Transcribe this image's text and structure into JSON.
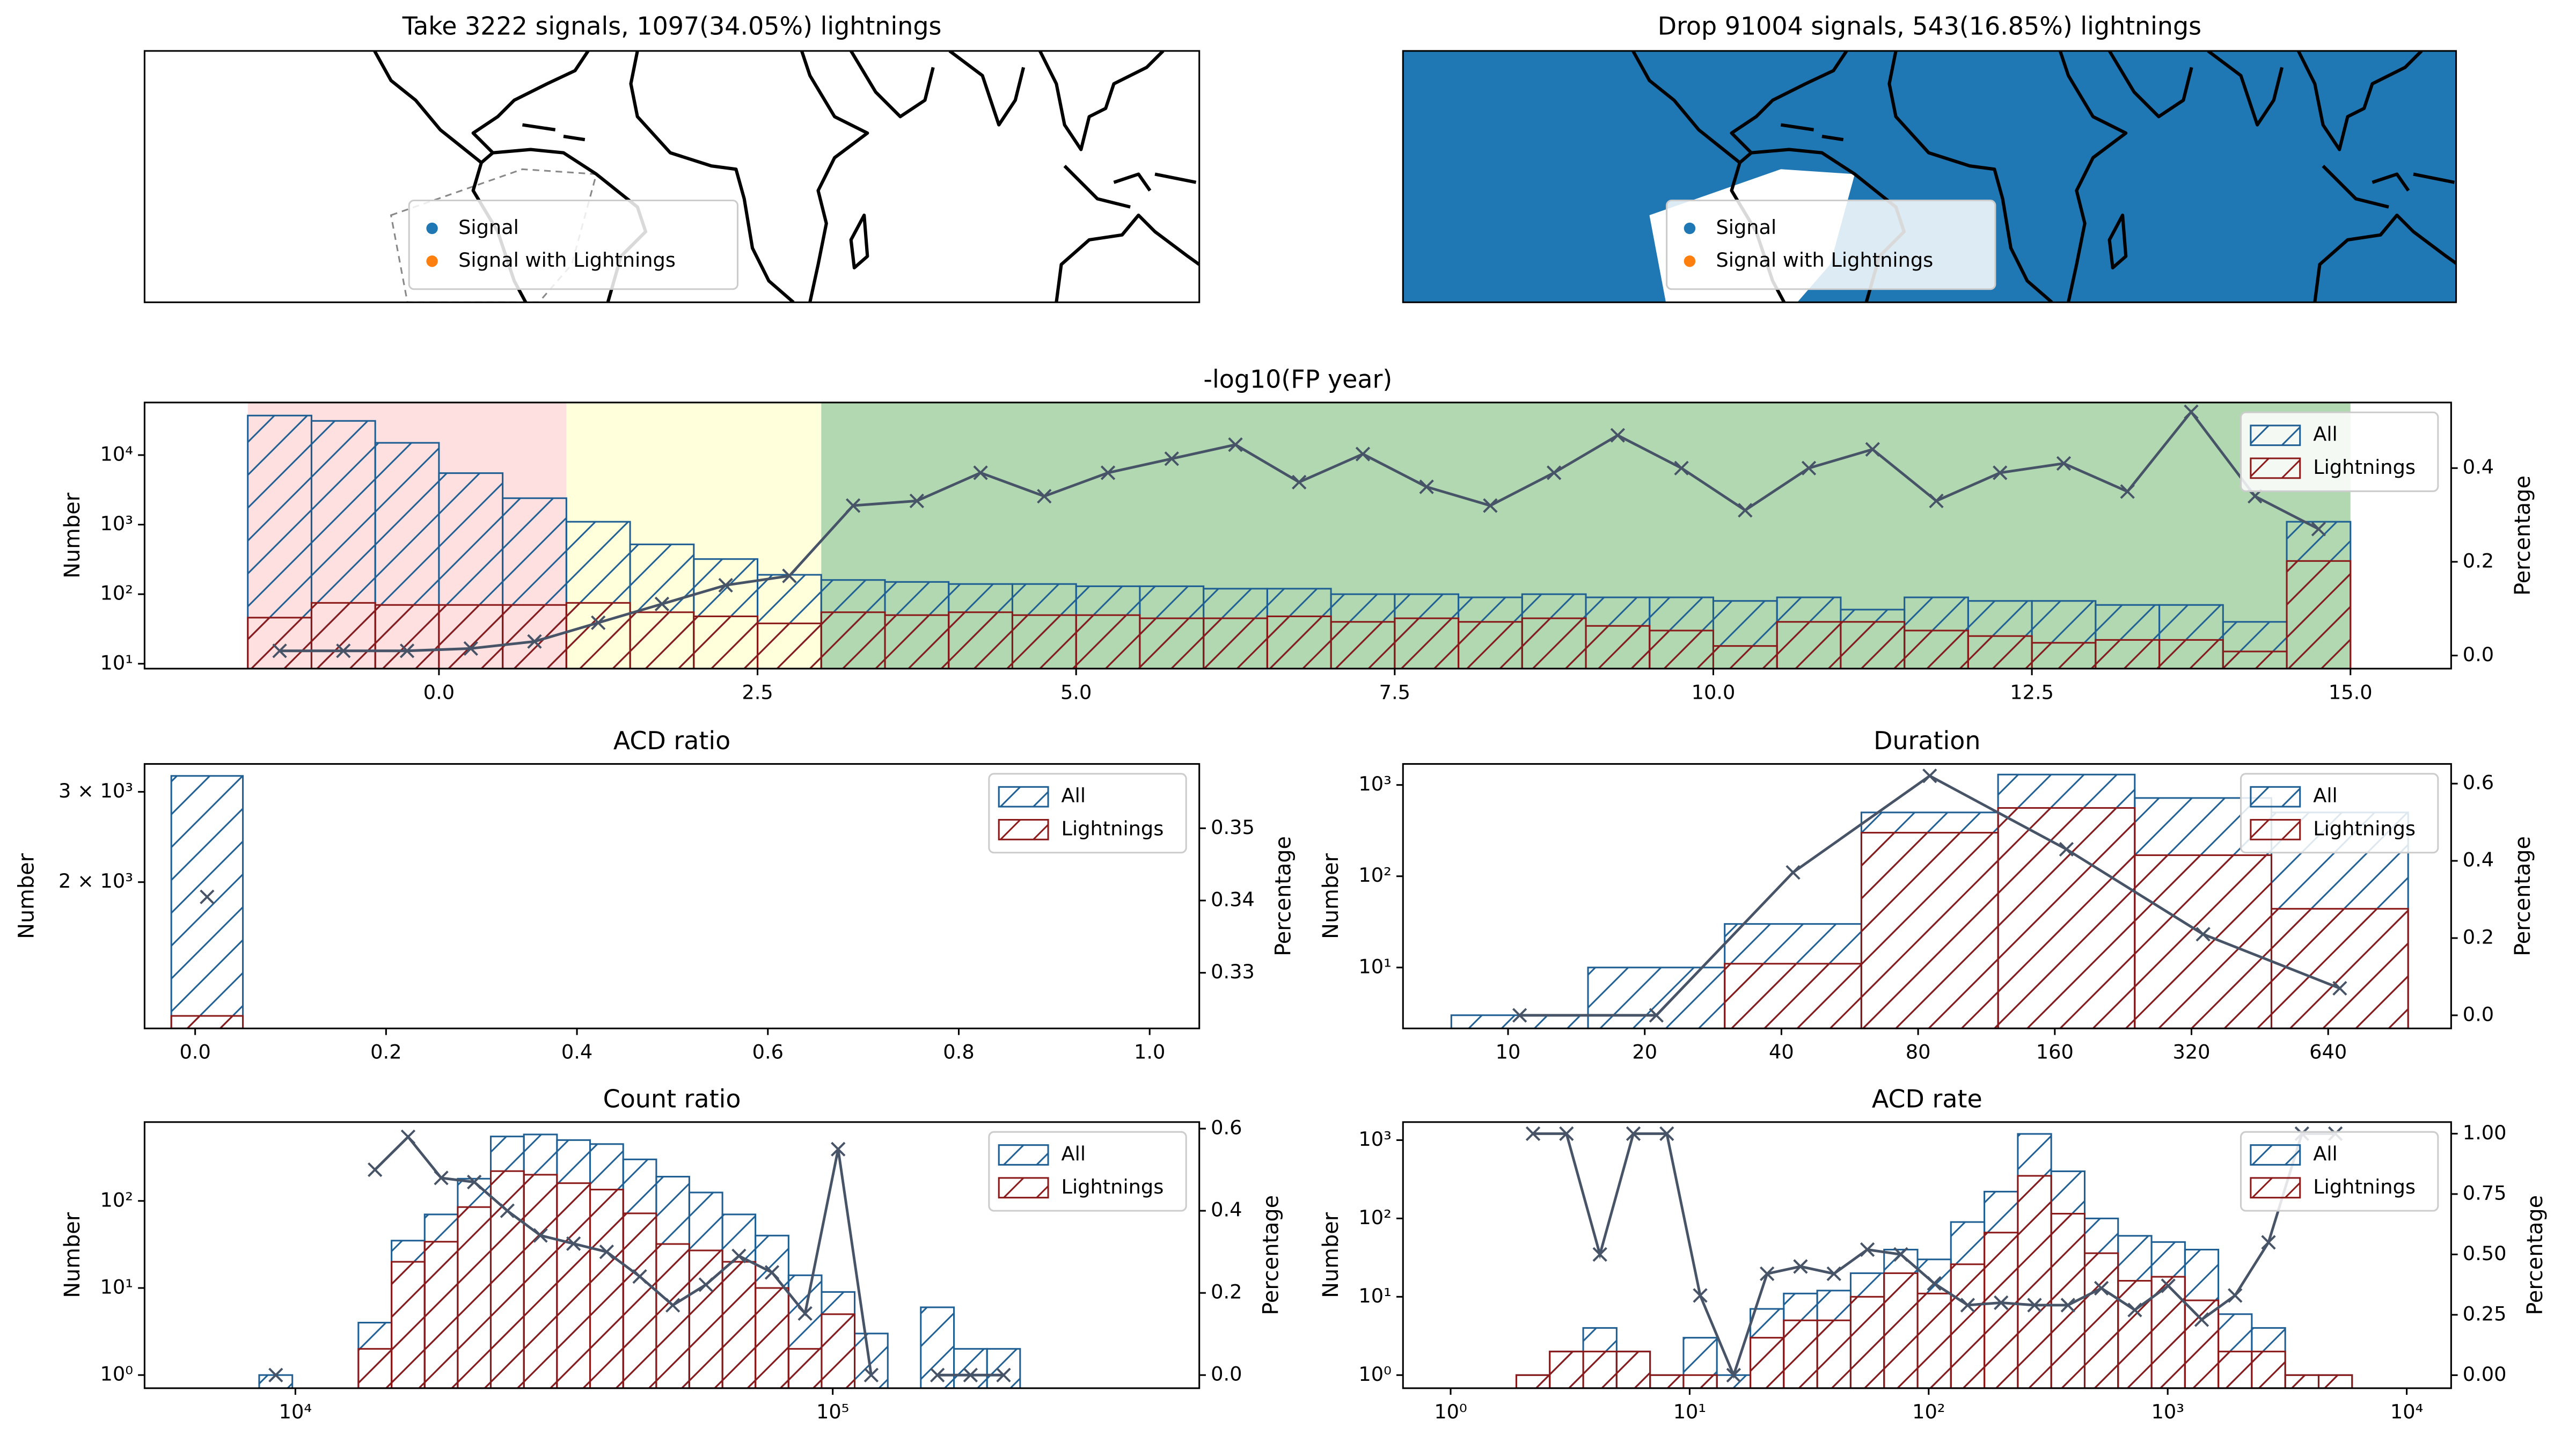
{
  "chart_data": [
    {
      "type": "map",
      "title": "Take 3222 signals, 1097(34.05%) lightnings",
      "background": "#ffffff",
      "legend": "lower center",
      "series": [
        {
          "name": "Signal",
          "color": "#1f77b4"
        },
        {
          "name": "Signal with Lightnings",
          "color": "#ff7f0e"
        }
      ]
    },
    {
      "type": "map",
      "title": "Drop 91004 signals, 543(16.85%) lightnings",
      "background": "#1f77b4",
      "legend": "lower center",
      "series": [
        {
          "name": "Signal",
          "color": "#1f77b4"
        },
        {
          "name": "Signal with Lightnings",
          "color": "#ff7f0e"
        }
      ]
    },
    {
      "type": "histogram",
      "title": "-log10(FP year)",
      "ylabel": "Number",
      "y2label": "Percentage",
      "xscale": "linear",
      "yscale": "log",
      "legend": "upper right",
      "xlim": [
        -2.31,
        15.79
      ],
      "xticks": [
        {
          "value": 0,
          "label": "0.0"
        },
        2.5,
        {
          "value": 5,
          "label": "5.0"
        },
        7.5,
        {
          "value": 10,
          "label": "10.0"
        },
        12.5,
        {
          "value": 15,
          "label": "15.0"
        }
      ],
      "ylim": [
        8.5,
        57000
      ],
      "yticks": [
        {
          "value": 10,
          "label": "10¹"
        },
        {
          "value": 100,
          "label": "10²"
        },
        {
          "value": 1000,
          "label": "10³"
        },
        {
          "value": 10000,
          "label": "10⁴"
        }
      ],
      "y2lim": [
        -0.028,
        0.54
      ],
      "y2ticks": [
        {
          "value": 0,
          "label": "0.0"
        },
        0.2,
        0.4
      ],
      "regions": [
        {
          "range": [
            -1.5,
            1
          ],
          "color": "#ffe0e0"
        },
        {
          "range": [
            1,
            3
          ],
          "color": "#ffffdc"
        },
        {
          "range": [
            3,
            15
          ],
          "color": "#b2d8b2"
        }
      ],
      "bins": [
        -1.5,
        -1,
        -0.5,
        0,
        0.5,
        1,
        1.5,
        2,
        2.5,
        3,
        3.5,
        4,
        4.5,
        5,
        5.5,
        6,
        6.5,
        7,
        7.5,
        8,
        8.5,
        9,
        9.5,
        10,
        10.5,
        11,
        11.5,
        12,
        12.5,
        13,
        13.5,
        14,
        14.5,
        15
      ],
      "series": [
        {
          "name": "All",
          "color": "#1f5f93",
          "values": [
            37000,
            31000,
            15000,
            5500,
            2400,
            1100,
            520,
            320,
            190,
            160,
            150,
            140,
            140,
            130,
            130,
            120,
            120,
            100,
            100,
            90,
            100,
            90,
            90,
            80,
            90,
            60,
            90,
            80,
            80,
            70,
            70,
            40,
            1100
          ]
        },
        {
          "name": "Lightnings",
          "color": "#8b1a1a",
          "values": [
            46,
            75,
            70,
            70,
            70,
            75,
            55,
            48,
            38,
            55,
            50,
            55,
            50,
            50,
            45,
            45,
            48,
            40,
            45,
            40,
            45,
            35,
            30,
            18,
            40,
            40,
            30,
            25,
            20,
            22,
            22,
            15,
            300
          ]
        },
        {
          "color": "#475366",
          "axis": "y2",
          "values": [
            0.01,
            0.01,
            0.01,
            0.015,
            0.03,
            0.07,
            0.11,
            0.15,
            0.17,
            0.32,
            0.33,
            0.39,
            0.34,
            0.39,
            0.42,
            0.45,
            0.37,
            0.43,
            0.36,
            0.32,
            0.39,
            0.47,
            0.4,
            0.31,
            0.4,
            0.44,
            0.33,
            0.39,
            0.41,
            0.35,
            0.52,
            0.34,
            0.27
          ]
        }
      ]
    },
    {
      "type": "histogram",
      "title": "ACD ratio",
      "ylabel": "Number",
      "y2label": "Percentage",
      "xscale": "linear",
      "yscale": "log",
      "legend": "upper right",
      "xlim": [
        -0.053,
        1.052
      ],
      "xticks": [
        {
          "value": 0,
          "label": "0.0"
        },
        0.2,
        0.4,
        0.6,
        0.8,
        {
          "value": 1,
          "label": "1.0"
        }
      ],
      "ylim": [
        1037,
        3400
      ],
      "yticks": [
        {
          "value": 2000,
          "label": "2 × 10³"
        },
        {
          "value": 3000,
          "label": "3 × 10³"
        }
      ],
      "y2lim": [
        0.3223,
        0.3589
      ],
      "y2ticks": [
        0.33,
        0.34,
        0.35
      ],
      "bins": [
        -0.025,
        0.05
      ],
      "series": [
        {
          "name": "All",
          "color": "#1f5f93",
          "values": [
            3222
          ]
        },
        {
          "name": "Lightnings",
          "color": "#8b1a1a",
          "values": [
            1097
          ]
        },
        {
          "color": "#475366",
          "axis": "y2",
          "values": [
            0.3405
          ]
        }
      ]
    },
    {
      "type": "histogram",
      "title": "Duration",
      "ylabel": "Number",
      "y2label": "Percentage",
      "xscale": "log",
      "yscale": "log",
      "legend": "upper right",
      "xlim": [
        5.87,
        1194
      ],
      "xticks": [
        10,
        20,
        40,
        80,
        160,
        320,
        640
      ],
      "ylim": [
        2.15,
        1700
      ],
      "yticks": [
        {
          "value": 10,
          "label": "10¹"
        },
        {
          "value": 100,
          "label": "10²"
        },
        {
          "value": 1000,
          "label": "10³"
        }
      ],
      "y2lim": [
        -0.034,
        0.651
      ],
      "y2ticks": [
        {
          "value": 0,
          "label": "0.0"
        },
        0.2,
        0.4,
        0.6
      ],
      "bins": [
        7.5,
        15,
        30,
        60,
        120,
        240,
        480,
        960
      ],
      "series": [
        {
          "name": "All",
          "color": "#1f5f93",
          "values": [
            3,
            10,
            30,
            500,
            1300,
            720,
            500
          ]
        },
        {
          "name": "Lightnings",
          "color": "#8b1a1a",
          "values": [
            0,
            0,
            11,
            300,
            560,
            170,
            44
          ]
        },
        {
          "color": "#475366",
          "axis": "y2",
          "values": [
            0,
            0,
            0.37,
            0.62,
            0.43,
            0.21,
            0.07
          ]
        }
      ]
    },
    {
      "type": "histogram",
      "title": "Count ratio",
      "ylabel": "Number",
      "y2label": "Percentage",
      "xscale": "log",
      "yscale": "log",
      "legend": "upper right",
      "xlim": [
        5240,
        481000
      ],
      "xticks": [
        {
          "value": 10000,
          "label": "10⁴"
        },
        {
          "value": 100000,
          "label": "10⁵"
        }
      ],
      "ylim": [
        0.706,
        805
      ],
      "yticks": [
        {
          "value": 1,
          "label": "10⁰"
        },
        {
          "value": 10,
          "label": "10¹"
        },
        {
          "value": 100,
          "label": "10²"
        }
      ],
      "y2lim": [
        -0.032,
        0.616
      ],
      "y2ticks": [
        {
          "value": 0,
          "label": "0.0"
        },
        0.2,
        0.4,
        0.6
      ],
      "bins": [
        8563,
        9870,
        11370,
        13100,
        15100,
        17400,
        20050,
        23100,
        26620,
        30680,
        35350,
        40740,
        46950,
        54080,
        62330,
        71800,
        82750,
        95350,
        109850,
        126600,
        145850,
        168100,
        193700,
        223200
      ],
      "series": [
        {
          "name": "All",
          "color": "#1f5f93",
          "values": [
            1,
            0,
            0,
            4,
            35,
            70,
            180,
            550,
            580,
            500,
            450,
            300,
            190,
            125,
            70,
            40,
            14,
            9,
            3,
            0,
            6,
            2,
            2
          ]
        },
        {
          "name": "Lightnings",
          "color": "#8b1a1a",
          "values": [
            0,
            0,
            0,
            2,
            20,
            34,
            85,
            220,
            200,
            160,
            135,
            72,
            32,
            27,
            20,
            10,
            2,
            5,
            0,
            0,
            0,
            0,
            0
          ]
        },
        {
          "color": "#475366",
          "axis": "y2",
          "values": [
            0,
            null,
            null,
            0.5,
            0.58,
            0.48,
            0.47,
            0.4,
            0.34,
            0.32,
            0.3,
            0.24,
            0.17,
            0.22,
            0.29,
            0.25,
            0.15,
            0.55,
            0,
            null,
            0,
            0,
            0
          ]
        }
      ]
    },
    {
      "type": "histogram",
      "title": "ACD rate",
      "ylabel": "Number",
      "y2label": "Percentage",
      "xscale": "log",
      "yscale": "log",
      "legend": "upper right",
      "xlim": [
        0.632,
        15340
      ],
      "xticks": [
        {
          "value": 1,
          "label": "10⁰"
        },
        {
          "value": 10,
          "label": "10¹"
        },
        {
          "value": 100,
          "label": "10²"
        },
        {
          "value": 1000,
          "label": "10³"
        },
        {
          "value": 10000,
          "label": "10⁴"
        }
      ],
      "ylim": [
        0.68,
        1700
      ],
      "yticks": [
        {
          "value": 1,
          "label": "10⁰"
        },
        {
          "value": 10,
          "label": "10¹"
        },
        {
          "value": 100,
          "label": "10²"
        },
        {
          "value": 1000,
          "label": "10³"
        }
      ],
      "y2lim": [
        -0.054,
        1.048
      ],
      "y2ticks": [
        {
          "value": 0,
          "label": "0.00"
        },
        0.25,
        {
          "value": 0.5,
          "label": "0.50"
        },
        0.75,
        {
          "value": 1,
          "label": "1.00"
        }
      ],
      "bins": [
        1.883,
        2.598,
        3.586,
        4.949,
        6.83,
        9.424,
        13,
        17.95,
        24.76,
        34.17,
        47.16,
        65.08,
        89.81,
        123.9,
        171,
        236,
        325.6,
        449.4,
        620.1,
        855.7,
        1181,
        1629,
        2248,
        3102,
        4281,
        5908
      ],
      "series": [
        {
          "name": "All",
          "color": "#1f5f93",
          "values": [
            1,
            2,
            4,
            2,
            1,
            3,
            1,
            7,
            11,
            12,
            20,
            40,
            30,
            90,
            220,
            1200,
            400,
            100,
            60,
            50,
            40,
            6,
            4,
            1,
            1
          ]
        },
        {
          "name": "Lightnings",
          "color": "#8b1a1a",
          "values": [
            1,
            2,
            2,
            2,
            1,
            1,
            0,
            3,
            5,
            5,
            10,
            20,
            11,
            26,
            66,
            350,
            115,
            36,
            16,
            18,
            9,
            2,
            2,
            1,
            1
          ]
        },
        {
          "color": "#475366",
          "axis": "y2",
          "values": [
            1,
            1,
            0.5,
            1,
            1,
            0.33,
            0,
            0.42,
            0.45,
            0.42,
            0.52,
            0.5,
            0.38,
            0.29,
            0.3,
            0.29,
            0.29,
            0.36,
            0.27,
            0.37,
            0.23,
            0.33,
            0.55,
            1,
            1
          ]
        }
      ]
    }
  ]
}
